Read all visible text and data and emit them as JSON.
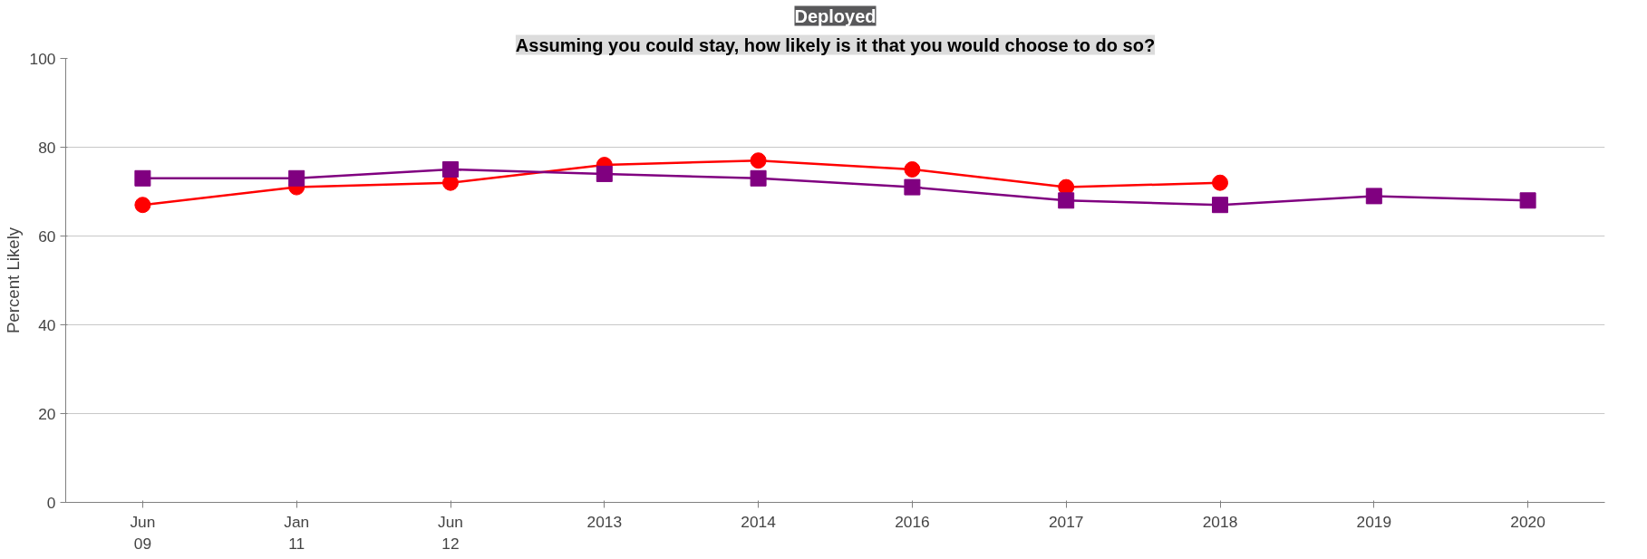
{
  "chart_data": {
    "type": "line",
    "title": "Deployed",
    "subtitle": "Assuming you could stay, how likely is it that you would choose to do so?",
    "ylabel": "Percent Likely",
    "categories": [
      "Jun\n09",
      "Jan\n11",
      "Jun\n12",
      "2013",
      "2014",
      "2016",
      "2017",
      "2018",
      "2019",
      "2020"
    ],
    "series": [
      {
        "color": "#ff0000",
        "marker": "circle",
        "values": [
          67,
          71,
          72,
          76,
          77,
          75,
          71,
          72,
          null,
          null
        ]
      },
      {
        "color": "#800080",
        "marker": "square",
        "values": [
          73,
          73,
          75,
          74,
          73,
          71,
          68,
          67,
          69,
          68
        ]
      }
    ],
    "ylim": [
      0,
      100
    ],
    "yticks": [
      0,
      20,
      40,
      60,
      80,
      100
    ],
    "grid": "y"
  }
}
